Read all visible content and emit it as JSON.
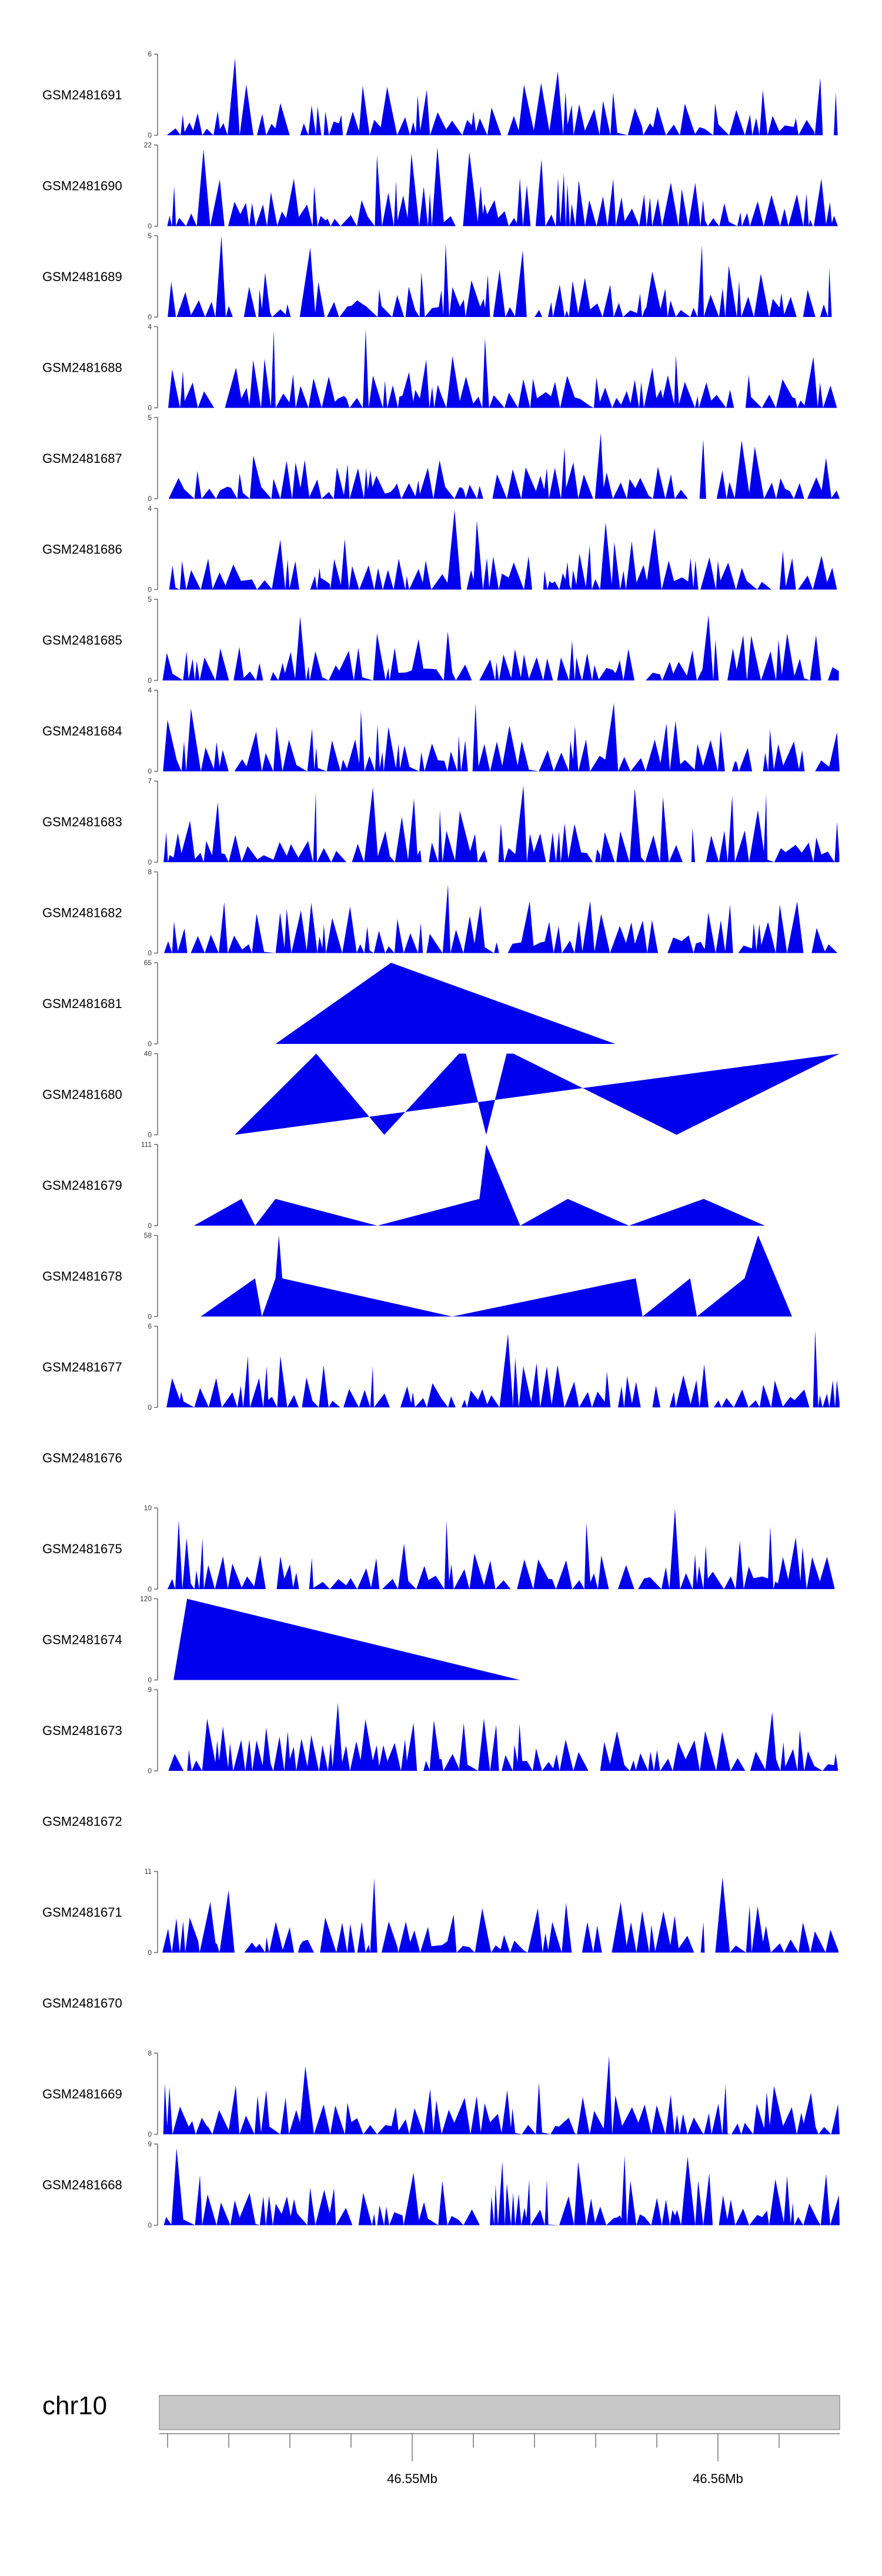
{
  "chart_data": {
    "type": "area",
    "series": [
      {
        "name": "GSM2481691",
        "ymax": 6
      },
      {
        "name": "GSM2481690",
        "ymax": 22
      },
      {
        "name": "GSM2481689",
        "ymax": 5
      },
      {
        "name": "GSM2481688",
        "ymax": 4
      },
      {
        "name": "GSM2481687",
        "ymax": 5
      },
      {
        "name": "GSM2481686",
        "ymax": 4
      },
      {
        "name": "GSM2481685",
        "ymax": 5
      },
      {
        "name": "GSM2481684",
        "ymax": 4
      },
      {
        "name": "GSM2481683",
        "ymax": 7
      },
      {
        "name": "GSM2481682",
        "ymax": 8
      },
      {
        "name": "GSM2481681",
        "ymax": 65,
        "points": [
          [
            0.17,
            0
          ],
          [
            0.34,
            1
          ],
          [
            0.67,
            0
          ]
        ]
      },
      {
        "name": "GSM2481680",
        "ymax": 40,
        "points": [
          [
            0.11,
            0
          ],
          [
            0.23,
            1
          ],
          [
            0.33,
            0
          ],
          [
            0.44,
            1
          ],
          [
            0.45,
            1
          ],
          [
            0.48,
            0
          ],
          [
            0.51,
            1
          ],
          [
            0.52,
            1
          ],
          [
            0.76,
            0
          ],
          [
            1.0,
            1
          ]
        ]
      },
      {
        "name": "GSM2481679",
        "ymax": 111,
        "points": [
          [
            0.05,
            0
          ],
          [
            0.12,
            0.33
          ],
          [
            0.14,
            0
          ],
          [
            0.17,
            0.33
          ],
          [
            0.32,
            0
          ],
          [
            0.47,
            0.33
          ],
          [
            0.48,
            1
          ],
          [
            0.53,
            0
          ],
          [
            0.6,
            0.33
          ],
          [
            0.69,
            0
          ],
          [
            0.8,
            0.33
          ],
          [
            0.89,
            0
          ]
        ]
      },
      {
        "name": "GSM2481678",
        "ymax": 58,
        "points": [
          [
            0.06,
            0
          ],
          [
            0.14,
            0.47
          ],
          [
            0.15,
            0
          ],
          [
            0.17,
            0.47
          ],
          [
            0.175,
            1
          ],
          [
            0.18,
            0.47
          ],
          [
            0.43,
            0
          ],
          [
            0.7,
            0.47
          ],
          [
            0.71,
            0
          ],
          [
            0.78,
            0.47
          ],
          [
            0.79,
            0
          ],
          [
            0.86,
            0.47
          ],
          [
            0.88,
            1
          ],
          [
            0.93,
            0
          ]
        ]
      },
      {
        "name": "GSM2481677",
        "ymax": 6
      },
      {
        "name": "GSM2481676",
        "empty": true
      },
      {
        "name": "GSM2481675",
        "ymax": 10
      },
      {
        "name": "GSM2481674",
        "ymax": 120,
        "points": [
          [
            0.02,
            0
          ],
          [
            0.04,
            1
          ],
          [
            0.53,
            0
          ]
        ]
      },
      {
        "name": "GSM2481673",
        "ymax": 9
      },
      {
        "name": "GSM2481672",
        "empty": true
      },
      {
        "name": "GSM2481671",
        "ymax": 11
      },
      {
        "name": "GSM2481670",
        "empty": true
      },
      {
        "name": "GSM2481669",
        "ymax": 8
      },
      {
        "name": "GSM2481668",
        "ymax": 9
      }
    ],
    "ideogram": {
      "chromosome": "chr10",
      "tick_labels": [
        "46.55Mb",
        "46.56Mb"
      ]
    },
    "colors": {
      "fill": "#0000ee",
      "axis": "#444444",
      "ideogram": "#c8c8c8"
    }
  }
}
